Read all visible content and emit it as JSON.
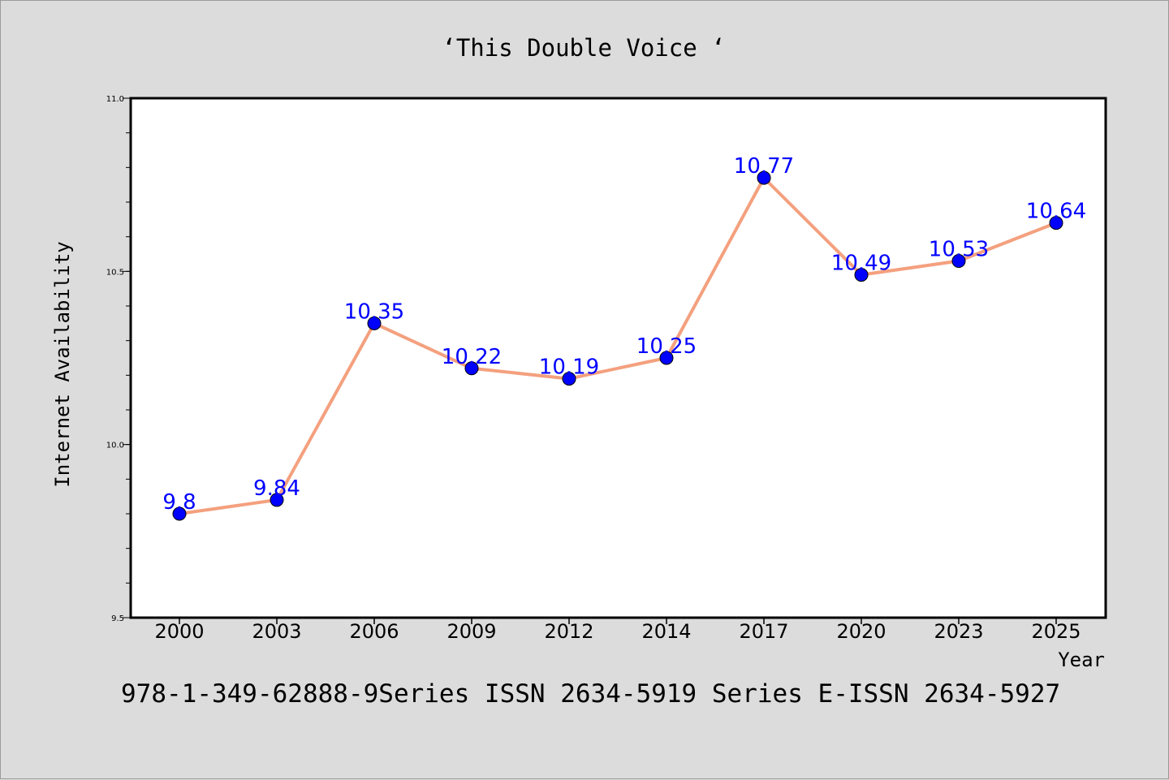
{
  "chart_data": {
    "type": "line",
    "title": "‘This Double Voice ‘",
    "xlabel": "Year",
    "ylabel": "Internet Availability",
    "categories": [
      "2000",
      "2003",
      "2006",
      "2009",
      "2012",
      "2014",
      "2017",
      "2020",
      "2023",
      "2025"
    ],
    "series": [
      {
        "values": [
          9.8,
          9.84,
          10.35,
          10.22,
          10.19,
          10.25,
          10.77,
          10.49,
          10.53,
          10.64
        ],
        "labels": [
          "9.8",
          "9.84",
          "10.35",
          "10.22",
          "10.19",
          "10.25",
          "10.77",
          "10.49",
          "10.53",
          "10.64"
        ],
        "line_color": "#f4a07e",
        "marker_color": "#0000ff",
        "label_color": "#0000ff"
      }
    ],
    "ylim": [
      9.5,
      11.0
    ],
    "yticks": [
      "9.5",
      "10.0",
      "10.5",
      "11.0"
    ],
    "grid": false,
    "legend": "none"
  },
  "footer": {
    "text": "978-1-349-62888-9Series ISSN 2634-5919 Series E-ISSN 2634-5927"
  },
  "colors": {
    "background": "#dcdcdc",
    "plot_background": "#ffffff",
    "axis": "#000000"
  }
}
